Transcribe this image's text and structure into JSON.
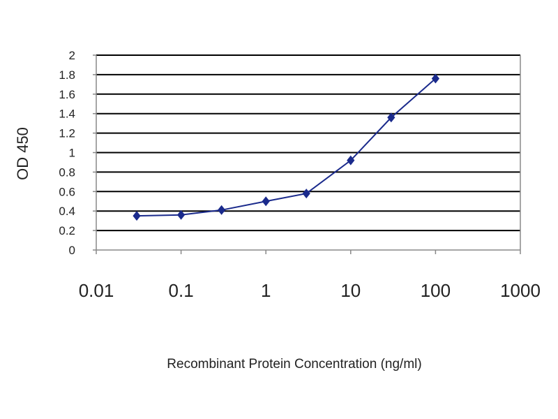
{
  "chart_data": {
    "type": "line",
    "title": "",
    "xlabel": "Recombinant Protein Concentration (ng/ml)",
    "ylabel": "OD 450",
    "x_scale": "log",
    "xlim": [
      0.01,
      1000
    ],
    "ylim": [
      0,
      2
    ],
    "grid": "horizontal",
    "legend": "none",
    "x_tick_labels": [
      "0.01",
      "0.1",
      "1",
      "10",
      "100",
      "1000"
    ],
    "x_tick_values": [
      0.01,
      0.1,
      1,
      10,
      100,
      1000
    ],
    "y_tick_labels": [
      "0",
      "0.2",
      "0.4",
      "0.6",
      "0.8",
      "1",
      "1.2",
      "1.4",
      "1.6",
      "1.8",
      "2"
    ],
    "y_tick_values": [
      0,
      0.2,
      0.4,
      0.6,
      0.8,
      1,
      1.2,
      1.4,
      1.6,
      1.8,
      2
    ],
    "series": [
      {
        "x": [
          0.03,
          0.1,
          0.3,
          1,
          3,
          10,
          30,
          100
        ],
        "y": [
          0.35,
          0.36,
          0.41,
          0.5,
          0.58,
          0.92,
          1.36,
          1.76
        ]
      }
    ],
    "colors": {
      "series": "#1a2a8c",
      "grid": "#000000",
      "frame": "#888888"
    }
  }
}
